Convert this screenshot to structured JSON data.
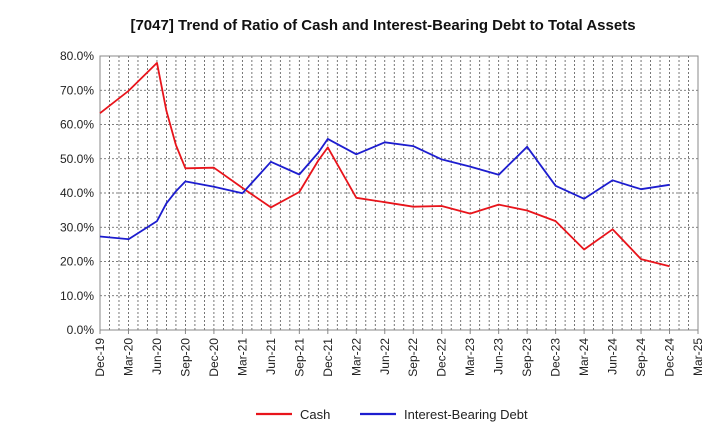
{
  "colors": {
    "cash": "#e8141b",
    "debt": "#1d1dcf",
    "grid": "#555555",
    "axis": "#888888"
  },
  "chart_data": {
    "type": "line",
    "title": "[7047]  Trend of Ratio of Cash and Interest-Bearing Debt to Total Assets",
    "xlabel": "",
    "ylabel": "",
    "ylim": [
      0,
      80
    ],
    "y_ticks": [
      "0.0%",
      "10.0%",
      "20.0%",
      "30.0%",
      "40.0%",
      "50.0%",
      "60.0%",
      "70.0%",
      "80.0%"
    ],
    "x_ticks": [
      "Dec-19",
      "Mar-20",
      "Jun-20",
      "Sep-20",
      "Dec-20",
      "Mar-21",
      "Jun-21",
      "Sep-21",
      "Dec-21",
      "Mar-22",
      "Jun-22",
      "Sep-22",
      "Dec-22",
      "Mar-23",
      "Jun-23",
      "Sep-23",
      "Dec-23",
      "Mar-24",
      "Jun-24",
      "Sep-24",
      "Dec-24",
      "Mar-25"
    ],
    "grid": true,
    "legend": "bottom",
    "series": [
      {
        "name": "Cash",
        "color_key": "cash",
        "points": [
          [
            "Dec-19",
            63.3
          ],
          [
            "Mar-20",
            69.8
          ],
          [
            "Jun-20",
            78.0
          ],
          [
            "Jul-20",
            64.0
          ],
          [
            "Aug-20",
            54.0
          ],
          [
            "Sep-20",
            47.2
          ],
          [
            "Dec-20",
            47.4
          ],
          [
            "Mar-21",
            41.5
          ],
          [
            "Jun-21",
            35.8
          ],
          [
            "Sep-21",
            40.3
          ],
          [
            "Nov-21",
            49.5
          ],
          [
            "Dec-21",
            53.3
          ],
          [
            "Mar-22",
            38.6
          ],
          [
            "Jun-22",
            37.3
          ],
          [
            "Sep-22",
            36.0
          ],
          [
            "Dec-22",
            36.2
          ],
          [
            "Mar-23",
            34.0
          ],
          [
            "Jun-23",
            36.6
          ],
          [
            "Sep-23",
            34.9
          ],
          [
            "Dec-23",
            31.8
          ],
          [
            "Mar-24",
            23.5
          ],
          [
            "Jun-24",
            29.4
          ],
          [
            "Sep-24",
            20.7
          ],
          [
            "Dec-24",
            18.6
          ]
        ]
      },
      {
        "name": "Interest-Bearing Debt",
        "color_key": "debt",
        "points": [
          [
            "Dec-19",
            27.3
          ],
          [
            "Mar-20",
            26.5
          ],
          [
            "Jun-20",
            31.8
          ],
          [
            "Jul-20",
            37.0
          ],
          [
            "Aug-20",
            40.5
          ],
          [
            "Sep-20",
            43.4
          ],
          [
            "Dec-20",
            41.8
          ],
          [
            "Mar-21",
            39.9
          ],
          [
            "Jun-21",
            49.1
          ],
          [
            "Sep-21",
            45.4
          ],
          [
            "Nov-21",
            51.8
          ],
          [
            "Dec-21",
            55.8
          ],
          [
            "Mar-22",
            51.3
          ],
          [
            "Jun-22",
            54.8
          ],
          [
            "Sep-22",
            53.7
          ],
          [
            "Dec-22",
            49.8
          ],
          [
            "Mar-23",
            47.7
          ],
          [
            "Jun-23",
            45.3
          ],
          [
            "Sep-23",
            53.5
          ],
          [
            "Dec-23",
            42.1
          ],
          [
            "Mar-24",
            38.3
          ],
          [
            "Jun-24",
            43.7
          ],
          [
            "Sep-24",
            41.1
          ],
          [
            "Dec-24",
            42.4
          ]
        ]
      }
    ]
  }
}
